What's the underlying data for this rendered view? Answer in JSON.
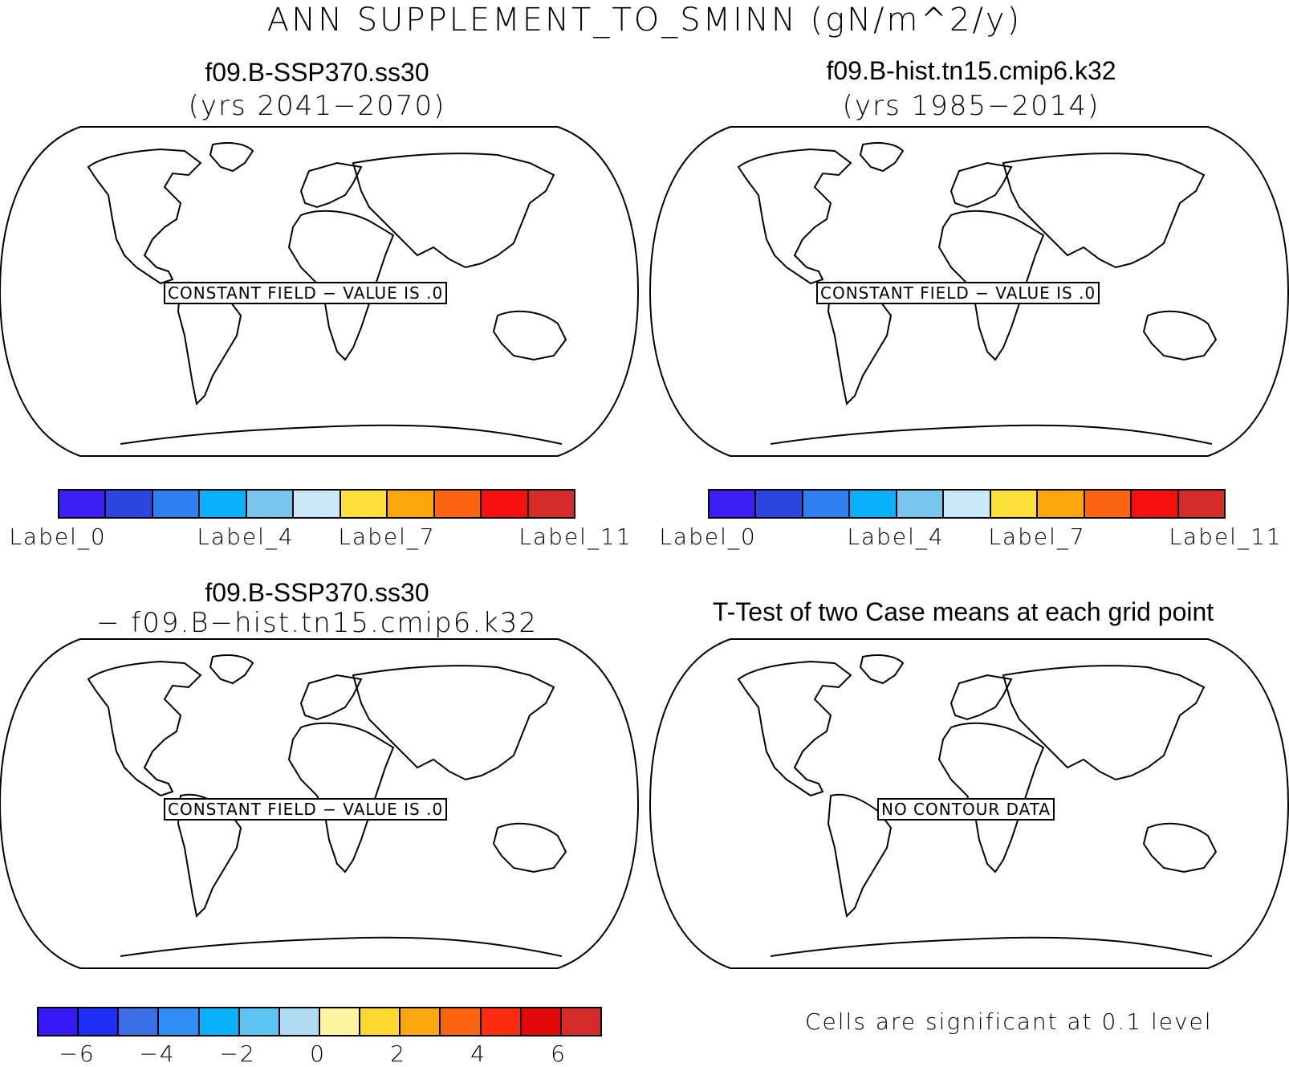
{
  "title": "ANN SUPPLEMENT_TO_SMINN (gN/m^2/y)",
  "panels": [
    {
      "title_line1": "f09.B-SSP370.ss30",
      "title_line2": "(yrs 2041−2070)",
      "box_text": "CONSTANT FIELD − VALUE IS .0"
    },
    {
      "title_line1": "f09.B-hist.tn15.cmip6.k32",
      "title_line2": "(yrs 1985−2014)",
      "box_text": "CONSTANT FIELD − VALUE IS .0"
    },
    {
      "title_line1": "f09.B-SSP370.ss30",
      "title_line2": "− f09.B−hist.tn15.cmip6.k32",
      "box_text": "CONSTANT FIELD − VALUE IS .0"
    },
    {
      "title_line1": "T-Test of two Case means at each grid point",
      "title_line2": "",
      "box_text": "NO CONTOUR DATA"
    }
  ],
  "colorbar_top": {
    "colors": [
      "#3b1ff5",
      "#2a45e0",
      "#2e7ff0",
      "#0ab0fa",
      "#78c6ee",
      "#cbe8f8",
      "#fce13a",
      "#fca50c",
      "#fc6414",
      "#f50f0f",
      "#d42a2a"
    ],
    "labels": [
      "Label_0",
      "Label_4",
      "Label_7",
      "Label_11"
    ]
  },
  "colorbar_diff": {
    "colors": [
      "#3a18f5",
      "#1c2ef5",
      "#3a6ee6",
      "#2e8ef5",
      "#0ab0fa",
      "#5cc4f0",
      "#b0dcf3",
      "#fdf6a0",
      "#fcd82e",
      "#fca50c",
      "#fc6414",
      "#fc2d0f",
      "#e00808",
      "#d42a2a"
    ],
    "labels": [
      "−6",
      "−4",
      "−2",
      "0",
      "2",
      "4",
      "6"
    ],
    "label_values": [
      -6,
      -4,
      -2,
      0,
      2,
      4,
      6
    ]
  },
  "significance_note": "Cells are significant at 0.1 level"
}
